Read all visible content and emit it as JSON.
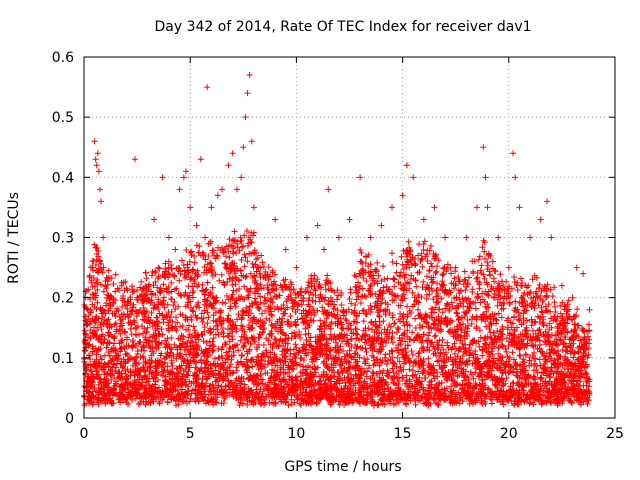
{
  "chart_data": {
    "type": "scatter",
    "title": "Day 342 of 2014, Rate Of TEC Index for receiver dav1",
    "xlabel": "GPS time / hours",
    "ylabel": "ROTI / TECUs",
    "xlim": [
      0,
      25
    ],
    "ylim": [
      0,
      0.6
    ],
    "x_ticks": [
      "0",
      "5",
      "10",
      "15",
      "20",
      "25"
    ],
    "y_ticks": [
      "0",
      "0.1",
      "0.2",
      "0.3",
      "0.4",
      "0.5",
      "0.6"
    ],
    "grid": true,
    "marker": "+",
    "color": "#ff0000",
    "series": [
      {
        "points": [
          [
            0.1,
            0.05
          ],
          [
            0.2,
            0.12
          ],
          [
            0.3,
            0.18
          ],
          [
            0.4,
            0.25
          ],
          [
            0.5,
            0.46
          ],
          [
            0.55,
            0.43
          ],
          [
            0.6,
            0.42
          ],
          [
            0.65,
            0.44
          ],
          [
            0.7,
            0.41
          ],
          [
            0.75,
            0.38
          ],
          [
            0.8,
            0.36
          ],
          [
            0.9,
            0.3
          ],
          [
            1.0,
            0.22
          ],
          [
            1.2,
            0.15
          ],
          [
            1.5,
            0.1
          ],
          [
            2.0,
            0.12
          ],
          [
            2.4,
            0.43
          ],
          [
            2.5,
            0.2
          ],
          [
            3.0,
            0.15
          ],
          [
            3.3,
            0.33
          ],
          [
            3.5,
            0.25
          ],
          [
            3.7,
            0.4
          ],
          [
            4.0,
            0.3
          ],
          [
            4.3,
            0.28
          ],
          [
            4.5,
            0.38
          ],
          [
            4.7,
            0.4
          ],
          [
            4.8,
            0.41
          ],
          [
            5.0,
            0.35
          ],
          [
            5.3,
            0.32
          ],
          [
            5.5,
            0.43
          ],
          [
            5.7,
            0.3
          ],
          [
            5.8,
            0.55
          ],
          [
            6.0,
            0.35
          ],
          [
            6.3,
            0.37
          ],
          [
            6.5,
            0.38
          ],
          [
            6.8,
            0.42
          ],
          [
            7.0,
            0.44
          ],
          [
            7.2,
            0.38
          ],
          [
            7.4,
            0.4
          ],
          [
            7.5,
            0.45
          ],
          [
            7.6,
            0.5
          ],
          [
            7.7,
            0.54
          ],
          [
            7.8,
            0.57
          ],
          [
            7.9,
            0.46
          ],
          [
            8.0,
            0.35
          ],
          [
            8.3,
            0.25
          ],
          [
            8.5,
            0.2
          ],
          [
            9.0,
            0.33
          ],
          [
            9.5,
            0.28
          ],
          [
            10.0,
            0.25
          ],
          [
            10.5,
            0.3
          ],
          [
            11.0,
            0.32
          ],
          [
            11.3,
            0.28
          ],
          [
            11.5,
            0.38
          ],
          [
            12.0,
            0.3
          ],
          [
            12.5,
            0.33
          ],
          [
            13.0,
            0.4
          ],
          [
            13.5,
            0.3
          ],
          [
            14.0,
            0.32
          ],
          [
            14.5,
            0.35
          ],
          [
            15.0,
            0.37
          ],
          [
            15.2,
            0.42
          ],
          [
            15.5,
            0.4
          ],
          [
            16.0,
            0.33
          ],
          [
            16.5,
            0.35
          ],
          [
            17.0,
            0.3
          ],
          [
            17.5,
            0.25
          ],
          [
            18.0,
            0.3
          ],
          [
            18.5,
            0.35
          ],
          [
            18.8,
            0.45
          ],
          [
            18.9,
            0.4
          ],
          [
            19.0,
            0.35
          ],
          [
            19.5,
            0.3
          ],
          [
            20.0,
            0.25
          ],
          [
            20.2,
            0.44
          ],
          [
            20.3,
            0.4
          ],
          [
            20.5,
            0.35
          ],
          [
            21.0,
            0.3
          ],
          [
            21.5,
            0.33
          ],
          [
            21.8,
            0.36
          ],
          [
            22.0,
            0.3
          ],
          [
            22.5,
            0.22
          ],
          [
            23.0,
            0.2
          ],
          [
            23.2,
            0.25
          ],
          [
            23.5,
            0.24
          ],
          [
            23.8,
            0.18
          ]
        ]
      }
    ],
    "dense_cloud": {
      "x_range": [
        0,
        23.8
      ],
      "y_floor": 0.03,
      "envelope_x": [
        0,
        0.5,
        1,
        2,
        3,
        4,
        5,
        6,
        7,
        7.8,
        8.5,
        9,
        10,
        11,
        12,
        12.5,
        13,
        14,
        15,
        16,
        17,
        18,
        18.8,
        19.5,
        20,
        21,
        22,
        23,
        23.8
      ],
      "envelope_y": [
        0.2,
        0.3,
        0.25,
        0.22,
        0.24,
        0.26,
        0.28,
        0.29,
        0.3,
        0.32,
        0.26,
        0.24,
        0.22,
        0.24,
        0.22,
        0.2,
        0.28,
        0.26,
        0.28,
        0.3,
        0.26,
        0.24,
        0.3,
        0.24,
        0.22,
        0.24,
        0.22,
        0.18,
        0.15
      ]
    }
  }
}
